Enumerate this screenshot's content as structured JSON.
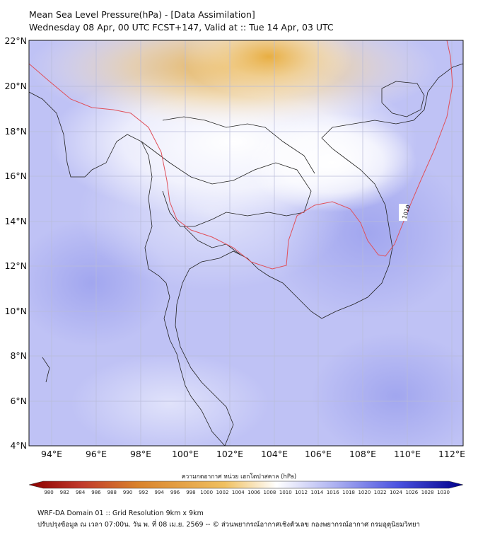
{
  "title_line1": "Mean Sea Level Pressure(hPa) - [Data Assimilation]",
  "title_line2": "Wednesday 08 Apr, 00 UTC FCST+147, Valid at :: Tue 14 Apr, 03 UTC",
  "lat_labels": [
    "22°N",
    "20°N",
    "18°N",
    "16°N",
    "14°N",
    "12°N",
    "10°N",
    "8°N",
    "6°N",
    "4°N"
  ],
  "lon_labels": [
    "94°E",
    "96°E",
    "98°E",
    "100°E",
    "102°E",
    "104°E",
    "106°E",
    "108°E",
    "110°E",
    "112°E"
  ],
  "contour_label": "1010",
  "colorbar": {
    "title": "ความกดอากาศ หน่วย เฮกโตปาสคาล (hPa)",
    "ticks": [
      "980",
      "982",
      "984",
      "986",
      "988",
      "990",
      "992",
      "994",
      "996",
      "998",
      "1000",
      "1002",
      "1004",
      "1006",
      "1008",
      "1010",
      "1012",
      "1014",
      "1016",
      "1018",
      "1020",
      "1022",
      "1024",
      "1026",
      "1028",
      "1030"
    ]
  },
  "footer_line1": "WRF-DA Domain 01 :: Grid Resolution 9km x 9km",
  "footer_line2": "ปรับปรุงข้อมูล ณ เวลา 07:00น. วัน พ. ที่ 08 เม.ย. 2569 -- © ส่วนพยากรณ์อากาศเชิงตัวเลข กองพยากรณ์อากาศ กรมอุตุนิยมวิทยา",
  "colors": {
    "low_pressure": "#e8b24a",
    "mid_pressure": "#ffffff",
    "high_pressure": "#aeb2f2",
    "contour_line": "#e0505a"
  }
}
